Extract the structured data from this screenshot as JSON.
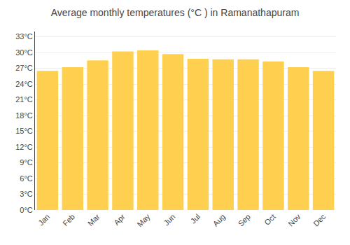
{
  "chart_data": {
    "type": "bar",
    "title": "Average monthly temperatures (°C ) in Ramanathapuram",
    "categories": [
      "Jan",
      "Feb",
      "Mar",
      "Apr",
      "May",
      "Jun",
      "Jul",
      "Aug",
      "Sep",
      "Oct",
      "Nov",
      "Dec"
    ],
    "values": [
      26.5,
      27.2,
      28.5,
      30.2,
      30.4,
      29.7,
      28.8,
      28.7,
      28.7,
      28.3,
      27.2,
      26.5
    ],
    "color": "#FFD050",
    "ylim": [
      0,
      34
    ],
    "yticks": [
      {
        "value": 0,
        "label": "0°C"
      },
      {
        "value": 3,
        "label": "3°C"
      },
      {
        "value": 6,
        "label": "6°C"
      },
      {
        "value": 9,
        "label": "9°C"
      },
      {
        "value": 12,
        "label": "12°C"
      },
      {
        "value": 15,
        "label": "15°C"
      },
      {
        "value": 18,
        "label": "18°C"
      },
      {
        "value": 21,
        "label": "21°C"
      },
      {
        "value": 24,
        "label": "24°C"
      },
      {
        "value": 27,
        "label": "27°C"
      },
      {
        "value": 30,
        "label": "30°C"
      },
      {
        "value": 33,
        "label": "33°C"
      }
    ],
    "grid": true
  }
}
